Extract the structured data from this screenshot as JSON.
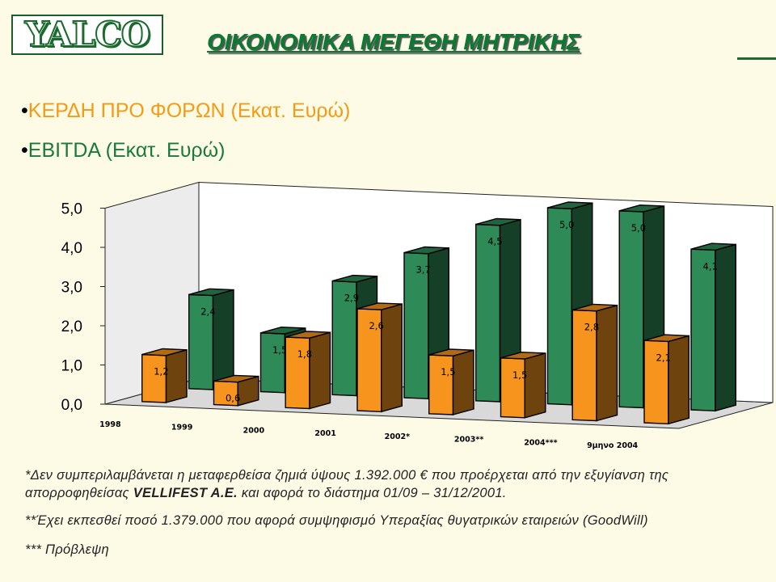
{
  "header": {
    "logo_text": "YALCO",
    "title": "ΟΙΚΟΝΟΜΙΚΑ ΜΕΓΕΘΗ ΜΗΤΡΙΚΗΣ"
  },
  "legend": [
    {
      "bullet": "•",
      "label": "ΚΕΡΔΗ ΠΡΟ ΦΟΡΩΝ (Εκατ. Ευρώ)",
      "color": "#f39b16"
    },
    {
      "bullet": "•",
      "label": "EBITDA (Εκατ. Ευρώ)",
      "color": "#1a7a3a"
    }
  ],
  "chart_data": {
    "type": "bar",
    "categories": [
      "1998",
      "1999",
      "2000",
      "2001",
      "2002*",
      "2003**",
      "2004***",
      "9μηνο 2004"
    ],
    "series": [
      {
        "name": "ΚΕΡΔΗ ΠΡΟ ΦΟΡΩΝ (Εκατ. Ευρώ)",
        "values": [
          1.2,
          0.6,
          1.8,
          2.6,
          1.5,
          1.5,
          2.8,
          2.1
        ],
        "labels": [
          "1,2",
          "0,6",
          "1,8",
          "2,6",
          "1,5",
          "1,5",
          "2,8",
          "2,1"
        ],
        "color": "#f7941d"
      },
      {
        "name": "EBITDA (Εκατ. Ευρώ)",
        "values": [
          2.4,
          1.5,
          2.9,
          3.7,
          4.5,
          5.0,
          5.0,
          4.1
        ],
        "labels": [
          "2,4",
          "1,5",
          "2,9",
          "3,7",
          "4,5",
          "5,0",
          "5,0",
          "4,1"
        ],
        "color": "#2e8b57"
      }
    ],
    "yticks": [
      "0,0",
      "1,0",
      "2,0",
      "3,0",
      "4,0",
      "5,0"
    ],
    "ylim": [
      0,
      5
    ],
    "grid": false,
    "style": "3d-clustered-columns"
  },
  "notes": {
    "n1_a": "*Δεν συμπεριλαμβάνεται η μεταφερθείσα ζημιά ύψους 1.392.000 € που προέρχεται από την εξυγίανση της απορροφηθείσας ",
    "n1_bold": "VELLIFEST A.E.",
    "n1_b": " και αφορά το διάστημα 01/09 – 31/12/2001.",
    "n2": "**Έχει εκπεσθεί ποσό 1.379.000 που αφορά συμψηφισμό Υπεραξίας θυγατρικών εταιρειών (GoodWill)",
    "n3": "*** Πρόβλεψη"
  }
}
